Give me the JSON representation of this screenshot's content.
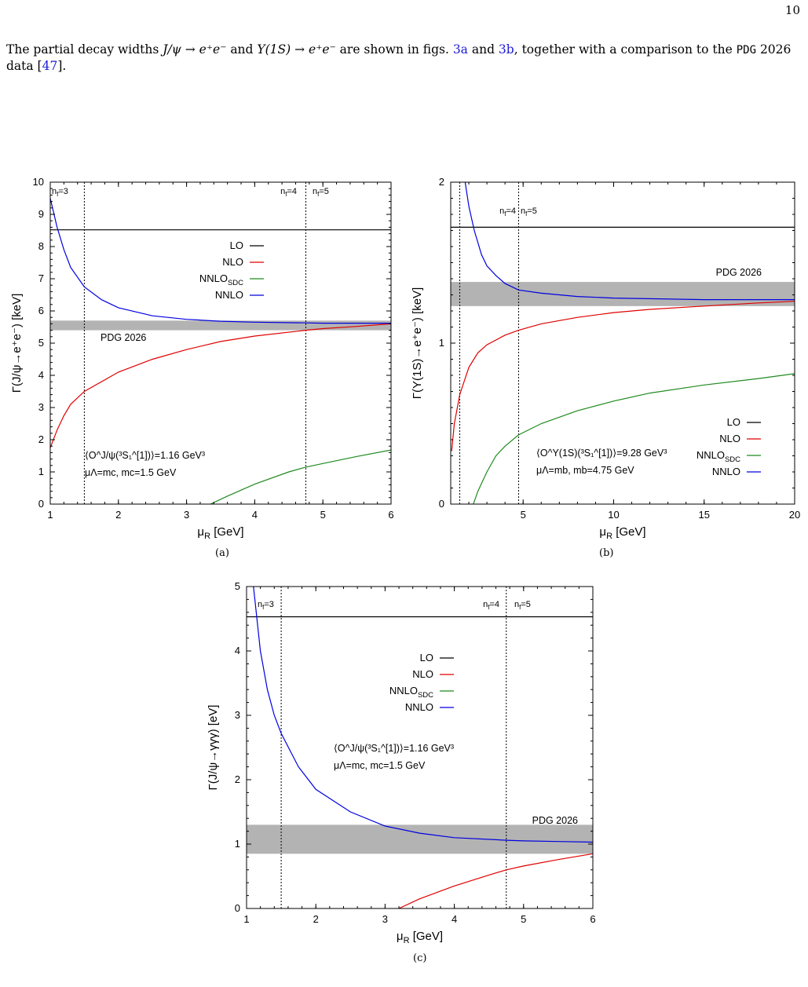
{
  "page_number": "10",
  "intro": {
    "part1": "The partial decay widths ",
    "eq1": "J/ψ → e⁺e⁻",
    "part2": " and ",
    "eq2": "Υ(1S) → e⁺e⁻",
    "part3": " are shown in figs. ",
    "ref1": "3a",
    "part4": " and ",
    "ref2": "3b",
    "part5": ", together with a comparison to the ",
    "pdg": "PDG",
    "part6": " 2026 data [",
    "ref3": "47",
    "part7": "]."
  },
  "colors": {
    "LO": "#000000",
    "NLO": "#e00000",
    "NNLO_SDC": "#1f8a1f",
    "NNLO": "#0000e0",
    "band": "#b3b3b3",
    "ref_link": "#1b1bd6"
  },
  "chart_data": [
    {
      "id": "a",
      "type": "line",
      "caption": "(a)",
      "xlabel": "μR [GeV]",
      "ylabel": "Γ(J/ψ→e⁺e⁻) [keV]",
      "xlim": [
        1,
        6
      ],
      "ylim": [
        0,
        10
      ],
      "xticks": [
        1,
        2,
        3,
        4,
        5,
        6
      ],
      "yticks": [
        0,
        1,
        2,
        3,
        4,
        5,
        6,
        7,
        8,
        9,
        10
      ],
      "thresholds": [
        {
          "x": 1.5,
          "label": "nf=3"
        },
        {
          "x": 4.75,
          "label": "nf=4"
        },
        {
          "x": 4.75,
          "label": "nf=5"
        }
      ],
      "band": {
        "label": "PDG 2026",
        "lo": 5.4,
        "hi": 5.7
      },
      "legend": [
        "LO",
        "NLO",
        "NNLO_SDC",
        "NNLO"
      ],
      "legend_labels": {
        "LO": "LO",
        "NLO": "NLO",
        "NNLO_SDC": "NNLOSDC",
        "NNLO": "NNLO"
      },
      "annotation": [
        "⟨O^J/ψ(³S₁^[1])⟩=1.16 GeV³",
        "μΛ=mc, mc=1.5 GeV"
      ],
      "series": [
        {
          "name": "LO",
          "x": [
            1,
            6
          ],
          "y": [
            8.52,
            8.52
          ]
        },
        {
          "name": "NLO",
          "x": [
            1,
            1.1,
            1.2,
            1.3,
            1.5,
            2,
            2.5,
            3,
            3.5,
            4,
            4.75,
            5,
            5.5,
            6
          ],
          "y": [
            1.75,
            2.3,
            2.75,
            3.1,
            3.5,
            4.1,
            4.5,
            4.8,
            5.05,
            5.22,
            5.4,
            5.45,
            5.52,
            5.6
          ]
        },
        {
          "name": "NNLO_SDC",
          "x": [
            3.35,
            3.6,
            4,
            4.5,
            4.75,
            5,
            5.5,
            6
          ],
          "y": [
            0,
            0.25,
            0.62,
            1.0,
            1.15,
            1.26,
            1.48,
            1.68
          ]
        },
        {
          "name": "NNLO",
          "x": [
            1,
            1.1,
            1.2,
            1.3,
            1.5,
            1.75,
            2,
            2.5,
            3,
            3.5,
            4,
            4.75,
            5,
            5.5,
            6
          ],
          "y": [
            9.5,
            8.6,
            7.9,
            7.35,
            6.75,
            6.35,
            6.1,
            5.85,
            5.74,
            5.68,
            5.65,
            5.63,
            5.62,
            5.62,
            5.62
          ]
        }
      ]
    },
    {
      "id": "b",
      "type": "line",
      "caption": "(b)",
      "xlabel": "μR [GeV]",
      "ylabel": "Γ(Υ(1S)→e⁺e⁻) [keV]",
      "xlim": [
        1,
        20
      ],
      "ylim": [
        0,
        2
      ],
      "xticks": [
        5,
        10,
        15,
        20
      ],
      "yticks": [
        0,
        1,
        2
      ],
      "thresholds": [
        {
          "x": 1.5,
          "label": ""
        },
        {
          "x": 4.75,
          "label": "nf=4"
        },
        {
          "x": 4.75,
          "label": "nf=5"
        }
      ],
      "band": {
        "label": "PDG 2026",
        "lo": 1.23,
        "hi": 1.38
      },
      "legend": [
        "LO",
        "NLO",
        "NNLO_SDC",
        "NNLO"
      ],
      "legend_labels": {
        "LO": "LO",
        "NLO": "NLO",
        "NNLO_SDC": "NNLOSDC",
        "NNLO": "NNLO"
      },
      "annotation": [
        "⟨O^Υ(1S)(³S₁^[1])⟩=9.28 GeV³",
        "μΛ=mb, mb=4.75 GeV"
      ],
      "series": [
        {
          "name": "LO",
          "x": [
            1,
            20
          ],
          "y": [
            1.72,
            1.72
          ]
        },
        {
          "name": "NLO",
          "x": [
            1.05,
            1.2,
            1.5,
            2,
            2.5,
            3,
            4,
            4.75,
            6,
            8,
            10,
            12,
            15,
            18,
            20
          ],
          "y": [
            0.33,
            0.5,
            0.68,
            0.85,
            0.94,
            0.99,
            1.05,
            1.08,
            1.12,
            1.16,
            1.19,
            1.21,
            1.23,
            1.25,
            1.26
          ]
        },
        {
          "name": "NNLO_SDC",
          "x": [
            2.25,
            2.5,
            3,
            3.5,
            4,
            4.75,
            6,
            8,
            10,
            12,
            15,
            18,
            20
          ],
          "y": [
            0,
            0.08,
            0.2,
            0.3,
            0.36,
            0.43,
            0.5,
            0.58,
            0.64,
            0.69,
            0.74,
            0.78,
            0.81
          ]
        },
        {
          "name": "NNLO",
          "x": [
            1.8,
            2,
            2.3,
            2.7,
            3,
            3.5,
            4,
            4.75,
            6,
            8,
            10,
            15,
            20
          ],
          "y": [
            2.0,
            1.85,
            1.7,
            1.55,
            1.48,
            1.42,
            1.37,
            1.33,
            1.31,
            1.29,
            1.28,
            1.27,
            1.27
          ]
        }
      ]
    },
    {
      "id": "c",
      "type": "line",
      "caption": "(c)",
      "xlabel": "μR [GeV]",
      "ylabel": "Γ(J/ψ→γγγ) [eV]",
      "xlim": [
        1,
        6
      ],
      "ylim": [
        0,
        5
      ],
      "xticks": [
        1,
        2,
        3,
        4,
        5,
        6
      ],
      "yticks": [
        0,
        1,
        2,
        3,
        4,
        5
      ],
      "thresholds": [
        {
          "x": 1.5,
          "label": "nf=3"
        },
        {
          "x": 4.75,
          "label": "nf=4"
        },
        {
          "x": 4.75,
          "label": "nf=5"
        }
      ],
      "band": {
        "label": "PDG 2026",
        "lo": 0.85,
        "hi": 1.3
      },
      "legend": [
        "LO",
        "NLO",
        "NNLO_SDC",
        "NNLO"
      ],
      "legend_labels": {
        "LO": "LO",
        "NLO": "NLO",
        "NNLO_SDC": "NNLOSDC",
        "NNLO": "NNLO"
      },
      "annotation": [
        "⟨O^J/ψ(³S₁^[1])⟩=1.16 GeV³",
        "μΛ=mc, mc=1.5 GeV"
      ],
      "series": [
        {
          "name": "LO",
          "x": [
            1,
            6
          ],
          "y": [
            4.53,
            4.53
          ]
        },
        {
          "name": "NLO",
          "x": [
            3.2,
            3.5,
            4,
            4.5,
            4.75,
            5,
            5.5,
            6
          ],
          "y": [
            0,
            0.15,
            0.35,
            0.52,
            0.6,
            0.66,
            0.76,
            0.85
          ]
        },
        {
          "name": "NNLO_SDC",
          "x": [],
          "y": []
        },
        {
          "name": "NNLO",
          "x": [
            1.1,
            1.2,
            1.3,
            1.4,
            1.5,
            1.75,
            2,
            2.5,
            3,
            3.5,
            4,
            4.75,
            5,
            5.5,
            6
          ],
          "y": [
            5.0,
            4.0,
            3.4,
            3.0,
            2.72,
            2.2,
            1.85,
            1.5,
            1.28,
            1.17,
            1.1,
            1.06,
            1.05,
            1.04,
            1.03
          ]
        }
      ]
    }
  ]
}
